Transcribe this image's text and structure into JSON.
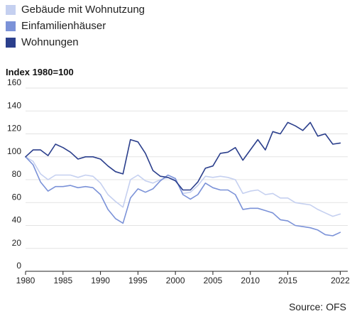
{
  "chart_data": {
    "type": "line",
    "ylabel": "Index 1980=100",
    "ylim": [
      0,
      160
    ],
    "yticks": [
      0,
      20,
      40,
      60,
      80,
      100,
      120,
      140,
      160
    ],
    "ytick_labels": [
      "0",
      "20",
      "40",
      "60",
      "80",
      "100",
      "120",
      "140",
      "160"
    ],
    "xlim": [
      1980,
      2023
    ],
    "xticks": [
      1980,
      1985,
      1990,
      1995,
      2000,
      2005,
      2010,
      2015,
      2022
    ],
    "xtick_labels": [
      "1980",
      "1985",
      "1990",
      "1995",
      "2000",
      "2005",
      "2010",
      "2015",
      "2022"
    ],
    "grid": true,
    "legend_position": "top-left",
    "x": [
      1980,
      1981,
      1982,
      1983,
      1984,
      1985,
      1986,
      1987,
      1988,
      1989,
      1990,
      1991,
      1992,
      1993,
      1994,
      1995,
      1996,
      1997,
      1998,
      1999,
      2000,
      2001,
      2002,
      2003,
      2004,
      2005,
      2006,
      2007,
      2008,
      2009,
      2010,
      2011,
      2012,
      2013,
      2014,
      2015,
      2016,
      2017,
      2018,
      2019,
      2020,
      2021,
      2022
    ],
    "series": [
      {
        "name": "Gebäude mit Wohnutzung",
        "color": "#c5d0f0",
        "values": [
          100,
          96,
          85,
          80,
          84,
          84,
          84,
          82,
          84,
          83,
          77,
          67,
          61,
          56,
          80,
          84,
          79,
          77,
          80,
          82,
          80,
          68,
          69,
          75,
          83,
          82,
          83,
          82,
          80,
          68,
          70,
          71,
          67,
          68,
          64,
          64,
          60,
          59,
          58,
          54,
          51,
          48,
          50
        ]
      },
      {
        "name": "Einfamilienhäuser",
        "color": "#7b92d8",
        "values": [
          100,
          93,
          78,
          70,
          74,
          74,
          75,
          73,
          74,
          73,
          67,
          54,
          46,
          42,
          64,
          72,
          69,
          72,
          79,
          84,
          81,
          67,
          63,
          67,
          77,
          73,
          71,
          71,
          67,
          54,
          55,
          55,
          53,
          51,
          45,
          44,
          40,
          39,
          38,
          36,
          32,
          31,
          34
        ]
      },
      {
        "name": "Wohnungen",
        "color": "#2b3f8c",
        "values": [
          100,
          106,
          106,
          101,
          111,
          108,
          104,
          98,
          100,
          100,
          98,
          92,
          87,
          85,
          115,
          113,
          103,
          88,
          83,
          82,
          79,
          71,
          71,
          78,
          90,
          92,
          103,
          104,
          108,
          97,
          106,
          115,
          106,
          122,
          120,
          130,
          127,
          123,
          130,
          118,
          120,
          111,
          112
        ]
      }
    ]
  },
  "source": "Source: OFS"
}
